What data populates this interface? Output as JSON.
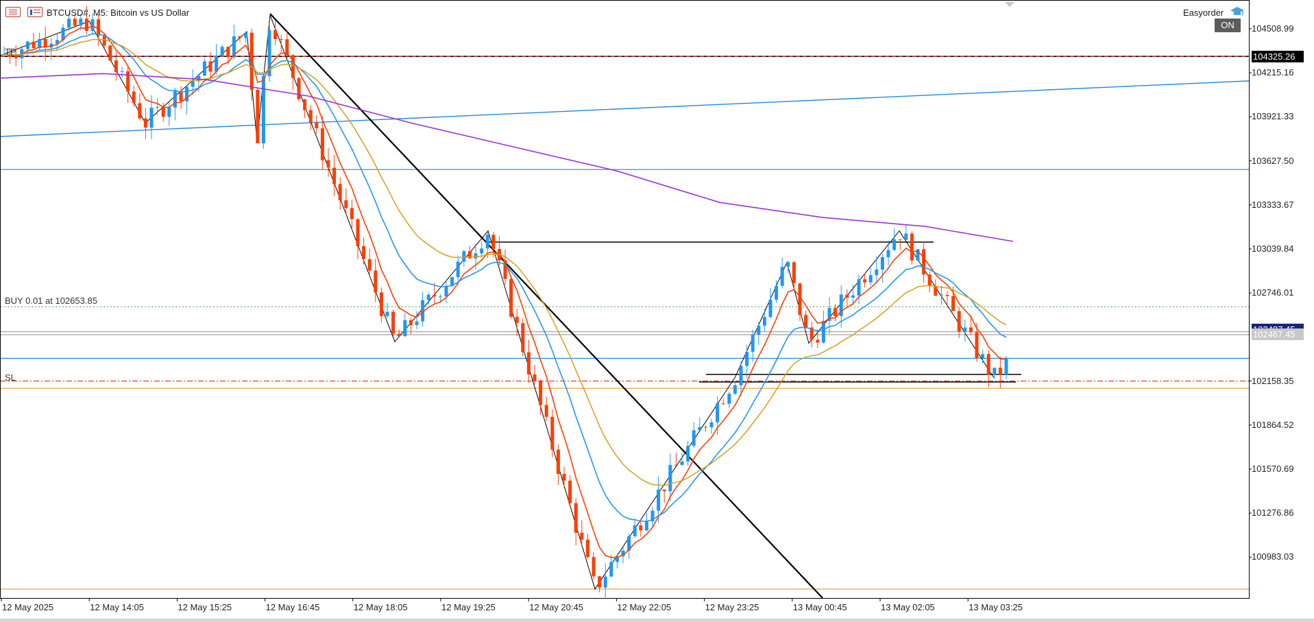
{
  "header": {
    "symbol_text": "BTCUSD#, M5:  Bitcoin vs US Dollar",
    "ea_name": "Easyorder",
    "ea_status": "ON",
    "icons": [
      "menu-icon",
      "chart-list-icon",
      "graduation-cap-icon"
    ]
  },
  "annotations": {
    "buy_label": "BUY 0.01 at 102653.85",
    "sl_label": "SL",
    "tp_label": "TP"
  },
  "price_axis": {
    "labels": [
      "104508.99",
      "104215.16",
      "103921.33",
      "103627.50",
      "103333.67",
      "103039.84",
      "102746.01",
      "102158.35",
      "101864.52",
      "101570.69",
      "101276.86",
      "100983.03"
    ],
    "tag_tp": "104325.26",
    "tag_current": "102467.45",
    "tag_bid": "102467.45",
    "tag_bid_hidden": "102487.45"
  },
  "time_axis": {
    "labels": [
      "12 May 2025",
      "12 May 14:05",
      "12 May 15:25",
      "12 May 16:45",
      "12 May 18:05",
      "12 May 19:25",
      "12 May 20:45",
      "12 May 22:05",
      "12 May 23:25",
      "13 May 00:45",
      "13 May 02:05",
      "13 May 03:25"
    ]
  },
  "colors": {
    "bull": "#2196f3",
    "bear": "#ff3d00",
    "ma_fast": "#ff3d00",
    "ma_mid": "#2196f3",
    "ma_slow": "#d4a017",
    "ma_long": "#9b30d9",
    "hline_blue": "#1e88e5",
    "hline_orange": "#e69a28",
    "tp_line": "#e53935",
    "buy_line": "#4caf50",
    "current_tag_bg": "#1a237e"
  },
  "chart_data": {
    "type": "candlestick",
    "symbol": "BTCUSD#",
    "timeframe": "M5",
    "ylim": [
      100700,
      104660
    ],
    "x": [
      "12 May 2025",
      "12 May 14:05",
      "12 May 15:25",
      "12 May 16:45",
      "12 May 18:05",
      "12 May 19:25",
      "12 May 20:45",
      "12 May 22:05",
      "12 May 23:25",
      "13 May 00:45",
      "13 May 02:05",
      "13 May 03:25"
    ],
    "zigzag_pivots": [
      [
        0,
        104330
      ],
      [
        1,
        104560
      ],
      [
        2,
        103880
      ],
      [
        3,
        104490
      ],
      [
        4,
        103760
      ],
      [
        5,
        104600
      ],
      [
        6,
        102420
      ],
      [
        7,
        103160
      ],
      [
        8,
        100770
      ],
      [
        9,
        102180
      ],
      [
        10,
        102950
      ],
      [
        11,
        102410
      ],
      [
        12,
        103160
      ],
      [
        13,
        102180
      ]
    ],
    "horizontal_levels": [
      {
        "price": 104325.26,
        "style": "solid",
        "color": "black"
      },
      {
        "price": 104325.26,
        "style": "dash",
        "color": "red"
      },
      {
        "price": 103570,
        "style": "solid",
        "color": "blue"
      },
      {
        "price": 102653.85,
        "style": "dotted",
        "color": "green"
      },
      {
        "price": 102487.45,
        "style": "solid",
        "color": "gray"
      },
      {
        "price": 102467.45,
        "style": "solid",
        "color": "gray"
      },
      {
        "price": 102310,
        "style": "solid",
        "color": "blue"
      },
      {
        "price": 102158.35,
        "style": "dashdot",
        "color": "red"
      },
      {
        "price": 102110,
        "style": "solid",
        "color": "orange"
      },
      {
        "price": 100770,
        "style": "solid",
        "color": "orange"
      }
    ]
  }
}
